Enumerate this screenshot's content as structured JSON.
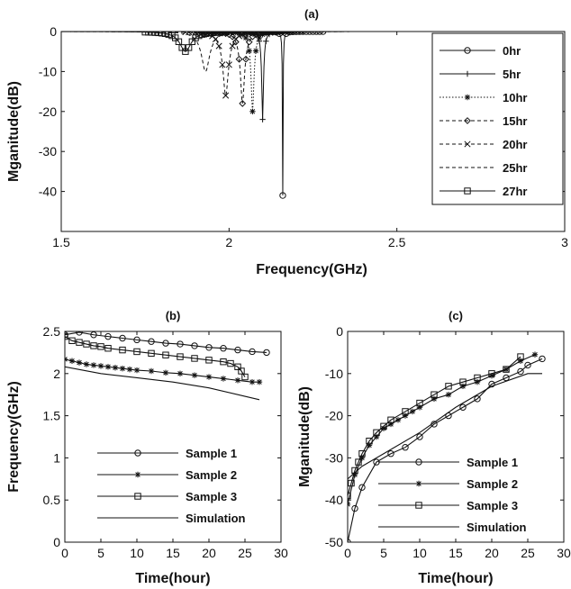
{
  "chart_data": [
    {
      "panel": "a",
      "type": "line",
      "title": "(a)",
      "xlabel": "Frequency(GHz)",
      "ylabel": "Mganitude(dB)",
      "xlim": [
        1.5,
        3.0
      ],
      "ylim": [
        -50,
        0
      ],
      "xticks": [
        "1.5",
        "2",
        "2.5",
        "3"
      ],
      "yticks": [
        "0",
        "-10",
        "-20",
        "-30",
        "-40"
      ],
      "legend_position": "top-right",
      "series": [
        {
          "name": "0hr",
          "marker": "circle",
          "dash": "solid",
          "f0": 2.16,
          "min_db": -41
        },
        {
          "name": "5hr",
          "marker": "plus",
          "dash": "solid",
          "f0": 2.1,
          "min_db": -22
        },
        {
          "name": "10hr",
          "marker": "star",
          "dash": "dotted",
          "f0": 2.07,
          "min_db": -20
        },
        {
          "name": "15hr",
          "marker": "diamond",
          "dash": "dashed",
          "f0": 2.04,
          "min_db": -18
        },
        {
          "name": "20hr",
          "marker": "x",
          "dash": "dashed",
          "f0": 1.99,
          "min_db": -16
        },
        {
          "name": "25hr",
          "marker": "none",
          "dash": "dashed",
          "f0": 1.93,
          "min_db": -10
        },
        {
          "name": "27hr",
          "marker": "square",
          "dash": "solid",
          "f0": 1.87,
          "min_db": -5
        }
      ]
    },
    {
      "panel": "b",
      "type": "line",
      "title": "(b)",
      "xlabel": "Time(hour)",
      "ylabel": "Frequency(GHz)",
      "xlim": [
        0,
        30
      ],
      "ylim": [
        0,
        2.5
      ],
      "xticks": [
        "0",
        "5",
        "10",
        "15",
        "20",
        "25",
        "30"
      ],
      "yticks": [
        "0",
        "0.5",
        "1",
        "1.5",
        "2",
        "2.5"
      ],
      "legend_position": "bottom-right",
      "series": [
        {
          "name": "Sample 1",
          "marker": "circle",
          "x": [
            0,
            2,
            4,
            6,
            8,
            10,
            12,
            14,
            16,
            18,
            20,
            22,
            24,
            26,
            28
          ],
          "y": [
            2.46,
            2.49,
            2.46,
            2.44,
            2.42,
            2.4,
            2.38,
            2.36,
            2.35,
            2.33,
            2.31,
            2.3,
            2.28,
            2.26,
            2.25
          ]
        },
        {
          "name": "Sample 2",
          "marker": "star",
          "x": [
            0,
            1,
            2,
            3,
            4,
            5,
            6,
            7,
            8,
            9,
            10,
            12,
            14,
            16,
            18,
            20,
            22,
            24,
            26,
            27
          ],
          "y": [
            2.17,
            2.15,
            2.13,
            2.11,
            2.1,
            2.09,
            2.08,
            2.07,
            2.06,
            2.05,
            2.04,
            2.03,
            2.01,
            2.0,
            1.98,
            1.96,
            1.94,
            1.92,
            1.9,
            1.9
          ]
        },
        {
          "name": "Sample 3",
          "marker": "square",
          "x": [
            0,
            1,
            2,
            3,
            4,
            5,
            6,
            8,
            10,
            12,
            14,
            16,
            18,
            20,
            22,
            23,
            24,
            24.5,
            25
          ],
          "y": [
            2.44,
            2.39,
            2.37,
            2.35,
            2.33,
            2.32,
            2.3,
            2.28,
            2.26,
            2.24,
            2.22,
            2.2,
            2.18,
            2.16,
            2.14,
            2.12,
            2.08,
            2.03,
            1.96
          ]
        },
        {
          "name": "Simulation",
          "marker": "none",
          "x": [
            0,
            5,
            10,
            15,
            20,
            25,
            27
          ],
          "y": [
            2.08,
            2.0,
            1.95,
            1.9,
            1.83,
            1.73,
            1.69
          ]
        }
      ]
    },
    {
      "panel": "c",
      "type": "line",
      "title": "(c)",
      "xlabel": "Time(hour)",
      "ylabel": "Mganitude(dB)",
      "xlim": [
        0,
        30
      ],
      "ylim": [
        -50,
        0
      ],
      "xticks": [
        "0",
        "5",
        "10",
        "15",
        "20",
        "25",
        "30"
      ],
      "yticks": [
        "0",
        "-10",
        "-20",
        "-30",
        "-40",
        "-50"
      ],
      "legend_position": "bottom-right",
      "series": [
        {
          "name": "Sample 1",
          "marker": "circle",
          "x": [
            0,
            1,
            2,
            4,
            6,
            8,
            10,
            12,
            14,
            16,
            18,
            20,
            22,
            24,
            25,
            27
          ],
          "y": [
            -50,
            -42,
            -37,
            -31,
            -29,
            -27.5,
            -25,
            -22,
            -20,
            -18,
            -16,
            -12.5,
            -11,
            -9.5,
            -8,
            -6.5
          ]
        },
        {
          "name": "Sample 2",
          "marker": "star",
          "x": [
            0,
            1,
            2,
            3,
            4,
            5,
            6,
            7,
            8,
            9,
            10,
            12,
            14,
            16,
            18,
            20,
            22,
            24,
            26
          ],
          "y": [
            -41,
            -34,
            -30,
            -27,
            -25,
            -23,
            -22,
            -21,
            -20,
            -19,
            -18,
            -16,
            -15,
            -13,
            -12,
            -10.5,
            -9,
            -7,
            -5.5
          ]
        },
        {
          "name": "Sample 3",
          "marker": "square",
          "x": [
            0,
            0.5,
            1,
            1.5,
            2,
            3,
            4,
            5,
            6,
            8,
            10,
            12,
            14,
            16,
            18,
            20,
            22,
            24
          ],
          "y": [
            -39,
            -36,
            -33,
            -31,
            -29,
            -26,
            -24,
            -22.5,
            -21,
            -19,
            -17,
            -15,
            -13,
            -12,
            -11,
            -10,
            -9,
            -6
          ]
        },
        {
          "name": "Simulation",
          "marker": "none",
          "x": [
            0,
            2,
            5,
            10,
            15,
            20,
            25,
            27
          ],
          "y": [
            -35,
            -32,
            -29,
            -24,
            -18,
            -13,
            -10,
            -10
          ]
        }
      ]
    }
  ]
}
